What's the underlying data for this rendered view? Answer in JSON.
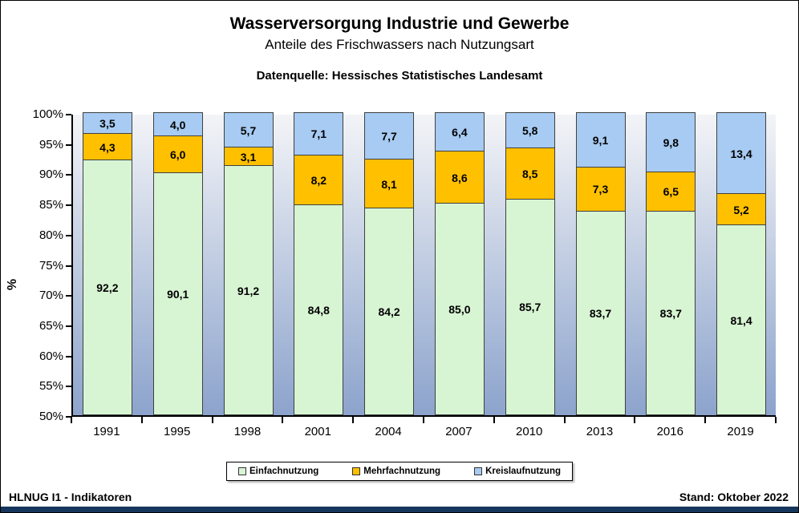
{
  "chart_data": {
    "type": "bar",
    "stacked": true,
    "title": "Wasserversorgung Industrie und Gewerbe",
    "subtitle": "Anteile des Frischwassers nach Nutzungsart",
    "source": "Datenquelle: Hessisches Statistisches Landesamt",
    "categories": [
      "1991",
      "1995",
      "1998",
      "2001",
      "2004",
      "2007",
      "2010",
      "2013",
      "2016",
      "2019"
    ],
    "series": [
      {
        "name": "Einfachnutzung",
        "color": "#D7F4D3",
        "values": [
          92.2,
          90.1,
          91.2,
          84.8,
          84.2,
          85.0,
          85.7,
          83.7,
          83.7,
          81.4
        ]
      },
      {
        "name": "Mehrfachnutzung",
        "color": "#FFC000",
        "values": [
          4.3,
          6.0,
          3.1,
          8.2,
          8.1,
          8.6,
          8.5,
          7.3,
          6.5,
          5.2
        ]
      },
      {
        "name": "Kreislaufnutzung",
        "color": "#A7CBF2",
        "values": [
          3.5,
          4.0,
          5.7,
          7.1,
          7.7,
          6.4,
          5.8,
          9.1,
          9.8,
          13.4
        ]
      }
    ],
    "ylabel": "%",
    "ylim": [
      50,
      100
    ],
    "ytick_step": 5,
    "ytick_suffix": "%",
    "value_decimal_separator": ",",
    "grid": false,
    "legend_position": "bottom"
  },
  "footer": {
    "left": "HLNUG I1 - Indikatoren",
    "right": "Stand: Oktober 2022"
  },
  "style_colors": {
    "bottom_bar": "#17365D",
    "plot_gradient_top": "#F3F4F7",
    "plot_gradient_bottom": "#8CA3CC",
    "bar_border": "#404040",
    "text": "#000000"
  }
}
